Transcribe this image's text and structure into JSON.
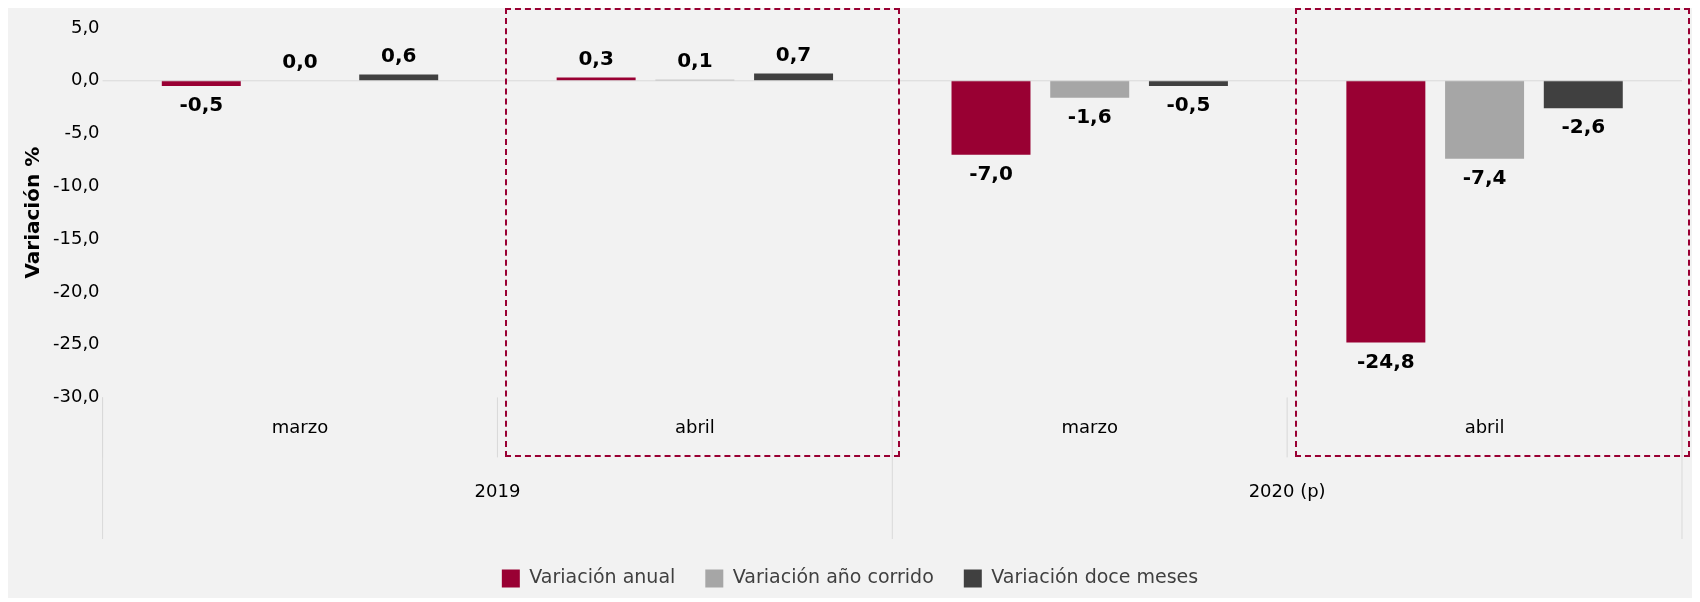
{
  "chart_data": {
    "type": "bar",
    "ylabel": "Variación %",
    "categories": [
      "marzo",
      "abril",
      "marzo",
      "abril"
    ],
    "annotations": [
      "2019",
      "2020 (p)"
    ],
    "series": [
      {
        "name": "Variación anual",
        "color": "#990033",
        "values": [
          -0.5,
          0.3,
          -7.0,
          -24.8
        ],
        "value_labels": [
          "-0,5",
          "0,3",
          "-7,0",
          "-24,8"
        ]
      },
      {
        "name": "Variación año corrido",
        "color": "#a6a6a6",
        "values": [
          0.0,
          0.1,
          -1.6,
          -7.4
        ],
        "value_labels": [
          "0,0",
          "0,1",
          "-1,6",
          "-7,4"
        ]
      },
      {
        "name": "Variación doce meses",
        "color": "#404040",
        "values": [
          0.6,
          0.7,
          -0.5,
          -2.6
        ],
        "value_labels": [
          "0,6",
          "0,7",
          "-0,5",
          "-2,6"
        ]
      }
    ],
    "ylim": [
      -30,
      5
    ],
    "yticks": [
      {
        "value": -30,
        "label": "-30,0"
      },
      {
        "value": -25,
        "label": "-25,0"
      },
      {
        "value": -20,
        "label": "-20,0"
      },
      {
        "value": -15,
        "label": "-15,0"
      },
      {
        "value": -10,
        "label": "-10,0"
      },
      {
        "value": -5,
        "label": "-5,0"
      },
      {
        "value": 0,
        "label": "0,0"
      },
      {
        "value": 5,
        "label": "5,0"
      }
    ],
    "ref_lines": [
      {
        "axis": "y",
        "value": 0,
        "color": "#d9d9d9"
      }
    ],
    "grid": false,
    "legend": "bottom"
  }
}
